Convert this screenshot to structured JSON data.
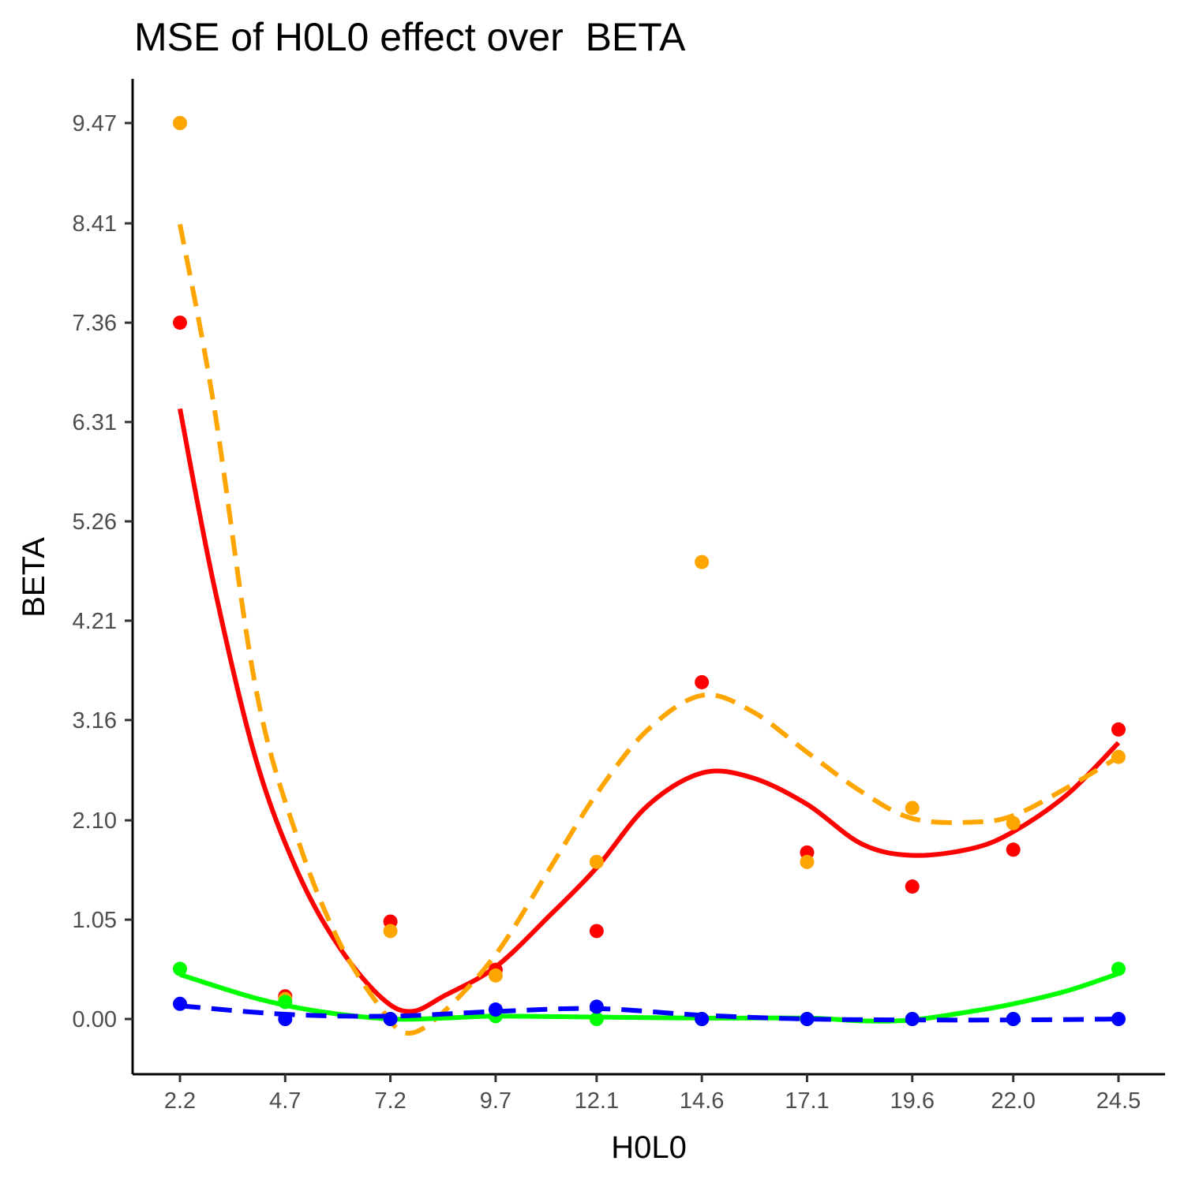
{
  "chart_data": {
    "type": "line",
    "title": "MSE of H0L0 effect over  BETA",
    "xlabel": "H0L0",
    "ylabel": "BETA",
    "x": [
      2.2,
      4.7,
      7.2,
      9.7,
      12.1,
      14.6,
      17.1,
      19.6,
      22.0,
      24.5
    ],
    "x_tick_labels": [
      "2.2",
      "4.7",
      "7.2",
      "9.7",
      "12.1",
      "14.6",
      "17.1",
      "19.6",
      "22.0",
      "24.5"
    ],
    "y_ticks": [
      0.0,
      1.05,
      2.1,
      3.16,
      4.21,
      5.26,
      6.31,
      7.36,
      8.41,
      9.47
    ],
    "y_tick_labels": [
      "0.00",
      "1.05",
      "2.10",
      "3.16",
      "4.21",
      "5.26",
      "6.31",
      "7.36",
      "8.41",
      "9.47"
    ],
    "ylim": [
      -0.6,
      9.95
    ],
    "grid": false,
    "series": [
      {
        "color": "#ff0000",
        "line_style": "solid",
        "points": [
          7.36,
          0.24,
          1.03,
          0.52,
          0.93,
          3.56,
          1.76,
          1.4,
          1.79,
          3.06
        ],
        "smooth": [
          [
            2.2,
            6.45
          ],
          [
            3.0,
            4.6
          ],
          [
            4.0,
            2.75
          ],
          [
            5.0,
            1.55
          ],
          [
            6.0,
            0.75
          ],
          [
            7.0,
            0.22
          ],
          [
            7.7,
            0.08
          ],
          [
            8.5,
            0.25
          ],
          [
            9.7,
            0.55
          ],
          [
            11.0,
            1.1
          ],
          [
            12.1,
            1.6
          ],
          [
            13.3,
            2.25
          ],
          [
            14.6,
            2.6
          ],
          [
            15.8,
            2.55
          ],
          [
            17.1,
            2.27
          ],
          [
            18.4,
            1.85
          ],
          [
            19.6,
            1.73
          ],
          [
            21.0,
            1.8
          ],
          [
            22.0,
            1.98
          ],
          [
            23.3,
            2.38
          ],
          [
            24.5,
            2.92
          ]
        ]
      },
      {
        "color": "#ffa500",
        "line_style": "dashed",
        "points": [
          9.47,
          0.21,
          0.93,
          0.46,
          1.66,
          4.83,
          1.66,
          2.23,
          2.07,
          2.77
        ],
        "smooth": [
          [
            2.2,
            8.4
          ],
          [
            3.0,
            6.5
          ],
          [
            4.0,
            3.5
          ],
          [
            5.0,
            1.9
          ],
          [
            6.0,
            0.8
          ],
          [
            7.0,
            0.1
          ],
          [
            7.6,
            -0.15
          ],
          [
            8.4,
            0.05
          ],
          [
            9.7,
            0.68
          ],
          [
            11.0,
            1.6
          ],
          [
            12.1,
            2.38
          ],
          [
            13.3,
            3.05
          ],
          [
            14.6,
            3.42
          ],
          [
            15.8,
            3.25
          ],
          [
            17.1,
            2.82
          ],
          [
            18.4,
            2.4
          ],
          [
            19.6,
            2.12
          ],
          [
            21.0,
            2.08
          ],
          [
            22.0,
            2.15
          ],
          [
            23.3,
            2.45
          ],
          [
            24.5,
            2.77
          ]
        ]
      },
      {
        "color": "#00ff00",
        "line_style": "solid",
        "points": [
          0.53,
          0.18,
          0.0,
          0.03,
          0.0,
          0.0,
          0.0,
          0.0,
          0.0,
          0.53
        ],
        "smooth": [
          [
            2.2,
            0.47
          ],
          [
            4.0,
            0.22
          ],
          [
            5.5,
            0.08
          ],
          [
            7.2,
            0.0
          ],
          [
            8.5,
            0.01
          ],
          [
            9.7,
            0.03
          ],
          [
            12.1,
            0.02
          ],
          [
            14.6,
            0.01
          ],
          [
            17.1,
            0.01
          ],
          [
            18.4,
            -0.02
          ],
          [
            19.6,
            -0.01
          ],
          [
            21.0,
            0.08
          ],
          [
            22.0,
            0.16
          ],
          [
            23.3,
            0.3
          ],
          [
            24.5,
            0.48
          ]
        ]
      },
      {
        "color": "#0000ff",
        "line_style": "dashed",
        "points": [
          0.16,
          0.0,
          0.0,
          0.1,
          0.13,
          0.0,
          0.0,
          0.0,
          0.0,
          0.0
        ],
        "smooth": [
          [
            2.2,
            0.14
          ],
          [
            4.7,
            0.05
          ],
          [
            7.2,
            0.03
          ],
          [
            9.7,
            0.08
          ],
          [
            12.1,
            0.11
          ],
          [
            14.6,
            0.04
          ],
          [
            17.1,
            0.0
          ],
          [
            19.6,
            -0.01
          ],
          [
            22.0,
            -0.01
          ],
          [
            24.5,
            0.0
          ]
        ]
      }
    ]
  }
}
